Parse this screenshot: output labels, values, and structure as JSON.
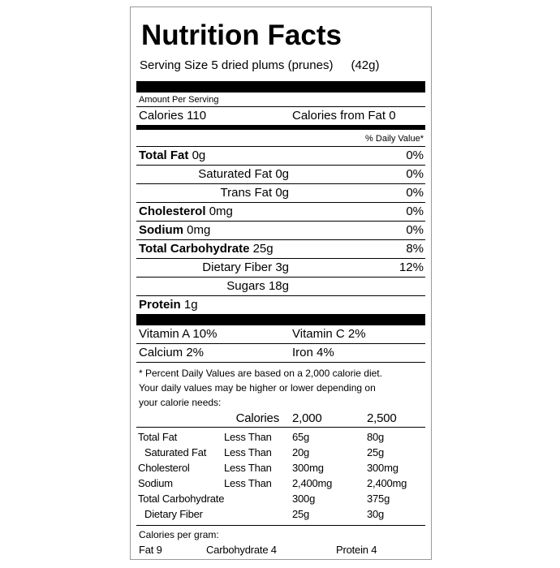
{
  "title": "Nutrition Facts",
  "serving": {
    "label": "Serving Size 5 dried plums (prunes)",
    "amount": "(42g)"
  },
  "amount_per_serving": "Amount Per Serving",
  "calories": {
    "label": "Calories 110",
    "from_fat": "Calories from Fat 0"
  },
  "daily_value_header": "% Daily Value*",
  "nutrients": [
    {
      "name": "Total Fat",
      "amount": "0g",
      "dv": "0%",
      "subs": [
        {
          "name": "Saturated Fat",
          "amount": "0g",
          "dv": "0%"
        },
        {
          "name": "Trans Fat",
          "amount": "0g",
          "dv": "0%"
        }
      ]
    },
    {
      "name": "Cholesterol",
      "amount": "0mg",
      "dv": "0%"
    },
    {
      "name": "Sodium",
      "amount": "0mg",
      "dv": "0%"
    },
    {
      "name": "Total Carbohydrate",
      "amount": "25g",
      "dv": "8%",
      "subs": [
        {
          "name": "Dietary Fiber",
          "amount": "3g",
          "dv": "12%"
        },
        {
          "name": "Sugars",
          "amount": "18g"
        }
      ]
    },
    {
      "name": "Protein",
      "amount": "1g"
    }
  ],
  "vitamins": [
    [
      "Vitamin A 10%",
      "Vitamin C 2%"
    ],
    [
      "Calcium 2%",
      "Iron 4%"
    ]
  ],
  "footnote": [
    "* Percent Daily Values are based on a 2,000 calorie diet.",
    "Your daily values may be higher or lower depending on",
    "your calorie needs:"
  ],
  "reference_table": {
    "header": [
      "Calories",
      "2,000",
      "2,500"
    ],
    "rows": [
      {
        "name": "Total Fat",
        "limit": "Less Than",
        "values": [
          "65g",
          "80g"
        ],
        "sub": {
          "name": "Saturated Fat",
          "limit": "Less Than",
          "values": [
            "20g",
            "25g"
          ]
        }
      },
      {
        "name": "Cholesterol",
        "limit": "Less Than",
        "values": [
          "300mg",
          "300mg"
        ]
      },
      {
        "name": "Sodium",
        "limit": "Less Than",
        "values": [
          "2,400mg",
          "2,400mg"
        ]
      },
      {
        "name": "Total Carbohydrate",
        "values": [
          "300g",
          "375g"
        ],
        "sub": {
          "name": "Dietary Fiber",
          "values": [
            "25g",
            "30g"
          ]
        }
      }
    ]
  },
  "calories_per_gram": {
    "label": "Calories per gram:",
    "items": [
      "Fat 9",
      "Carbohydrate 4",
      "Protein 4"
    ]
  }
}
